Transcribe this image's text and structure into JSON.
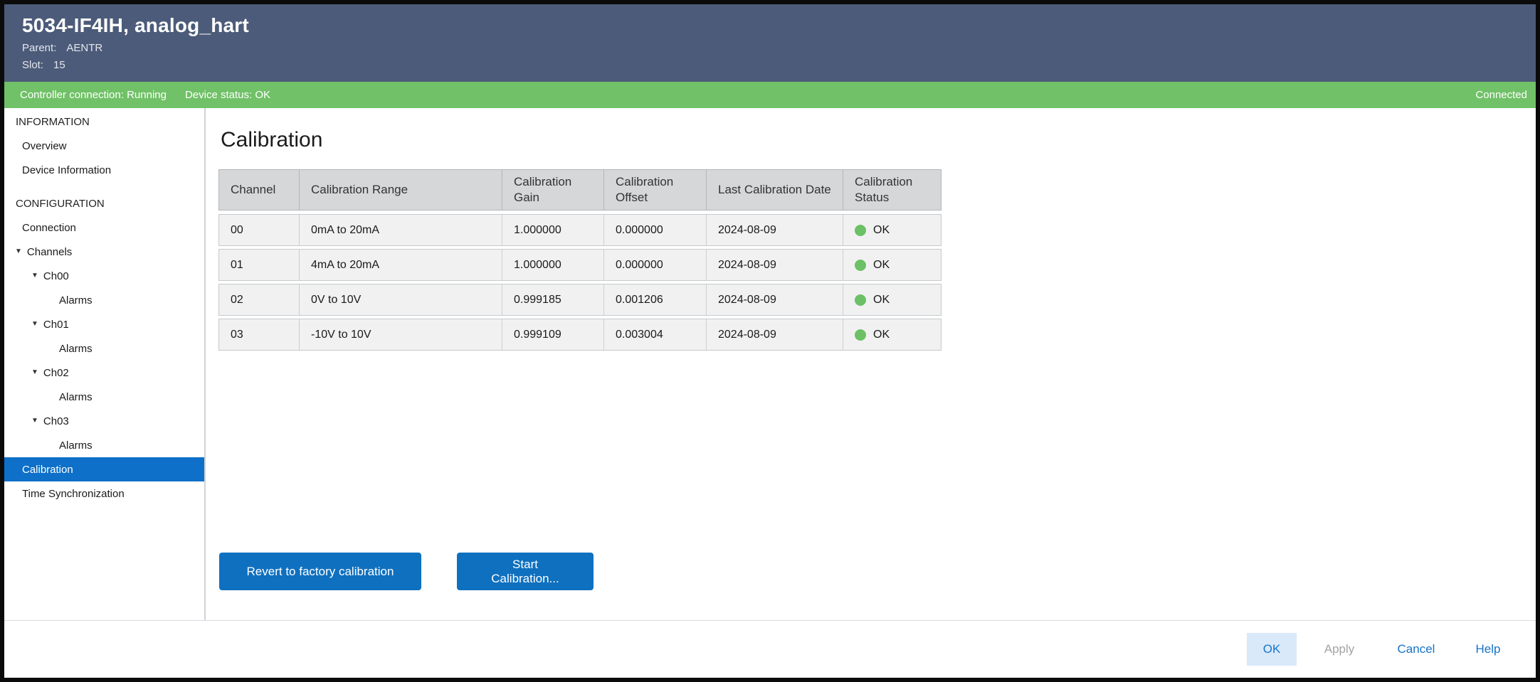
{
  "header": {
    "title": "5034-IF4IH, analog_hart",
    "parent_label": "Parent:",
    "parent_value": "AENTR",
    "slot_label": "Slot:",
    "slot_value": "15"
  },
  "status_bar": {
    "controller_connection": "Controller connection: Running",
    "device_status": "Device status: OK",
    "connection_state": "Connected"
  },
  "sidebar": {
    "items": [
      {
        "label": "INFORMATION",
        "type": "section"
      },
      {
        "label": "Overview"
      },
      {
        "label": "Device Information"
      },
      {
        "label": "CONFIGURATION",
        "type": "section"
      },
      {
        "label": "Connection"
      },
      {
        "label": "Channels",
        "expanded": true
      },
      {
        "label": "Ch00",
        "expanded": true
      },
      {
        "label": "Alarms"
      },
      {
        "label": "Ch01",
        "expanded": true
      },
      {
        "label": "Alarms"
      },
      {
        "label": "Ch02",
        "expanded": true
      },
      {
        "label": "Alarms"
      },
      {
        "label": "Ch03",
        "expanded": true
      },
      {
        "label": "Alarms"
      },
      {
        "label": "Calibration",
        "selected": true
      },
      {
        "label": "Time Synchronization"
      }
    ]
  },
  "page": {
    "title": "Calibration"
  },
  "table": {
    "columns": [
      "Channel",
      "Calibration Range",
      "Calibration Gain",
      "Calibration Offset",
      "Last Calibration Date",
      "Calibration Status"
    ],
    "rows": [
      {
        "channel": "00",
        "range": "0mA to 20mA",
        "gain": "1.000000",
        "offset": "0.000000",
        "date": "2024-08-09",
        "status": "OK"
      },
      {
        "channel": "01",
        "range": "4mA to 20mA",
        "gain": "1.000000",
        "offset": "0.000000",
        "date": "2024-08-09",
        "status": "OK"
      },
      {
        "channel": "02",
        "range": "0V to 10V",
        "gain": "0.999185",
        "offset": "0.001206",
        "date": "2024-08-09",
        "status": "OK"
      },
      {
        "channel": "03",
        "range": "-10V to 10V",
        "gain": "0.999109",
        "offset": "0.003004",
        "date": "2024-08-09",
        "status": "OK"
      }
    ]
  },
  "actions": {
    "revert_label": "Revert to factory calibration",
    "start_label": "Start Calibration..."
  },
  "footer": {
    "ok": "OK",
    "apply": "Apply",
    "cancel": "Cancel",
    "help": "Help"
  },
  "colors": {
    "header_bg": "#4c5b79",
    "status_bar_bg": "#70c167",
    "selected_item_bg": "#0e70c8",
    "action_button_bg": "#0f70bf",
    "ok_status_green": "#6cc066",
    "footer_ok_bg": "#d9e9fa",
    "footer_link_blue": "#1673c6",
    "disabled_text": "#a3a3a3"
  }
}
